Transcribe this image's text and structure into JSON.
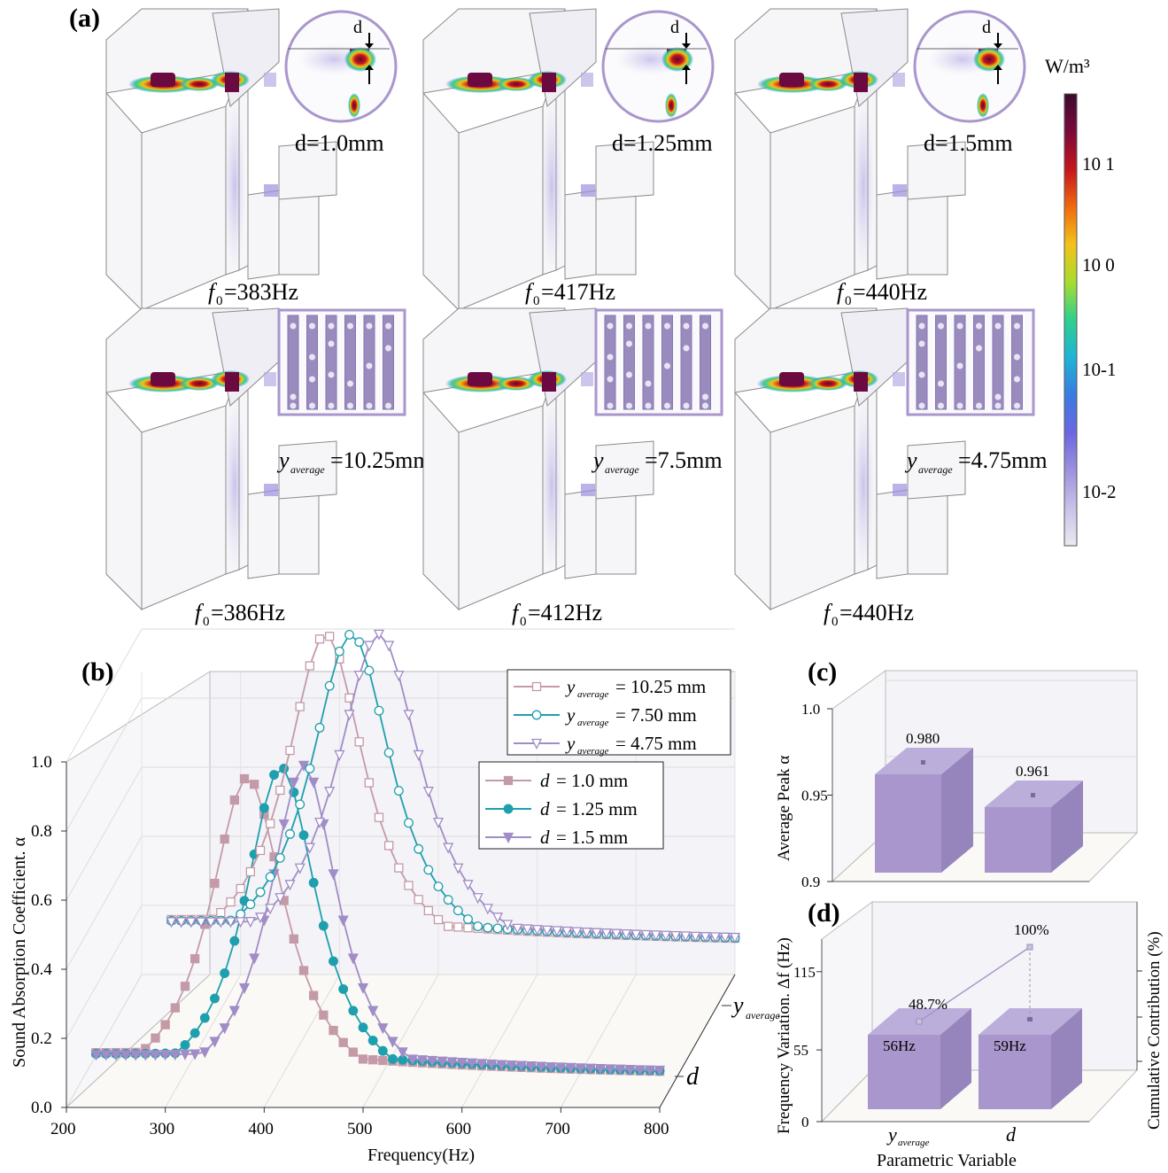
{
  "panel_a": {
    "letter": "(a)",
    "colorbar": {
      "unit": "W/m³",
      "ticks": [
        "10 1",
        "10 0",
        "10-1",
        "10-2"
      ],
      "colors": [
        "#3b0a2e",
        "#7a0a3a",
        "#c4151c",
        "#f06a10",
        "#f2c21a",
        "#a8dd2e",
        "#2fcf8e",
        "#1fb4d6",
        "#3a7be0",
        "#6b66e0",
        "#9c92de",
        "#c8c2e8",
        "#ebe9ef"
      ]
    },
    "zoom_d_symbol": "d",
    "cases": [
      {
        "param_label": "d=1.0mm",
        "freq_symbol": "f",
        "freq_sub": "0",
        "freq_value": "=383Hz"
      },
      {
        "param_label": "d=1.25mm",
        "freq_symbol": "f",
        "freq_sub": "0",
        "freq_value": "=417Hz"
      },
      {
        "param_label": "d=1.5mm",
        "freq_symbol": "f",
        "freq_sub": "0",
        "freq_value": "=440Hz"
      },
      {
        "param_sym": "y",
        "param_sub": "average",
        "param_value": "=10.25mm",
        "freq_symbol": "f",
        "freq_sub": "0",
        "freq_value": "=386Hz"
      },
      {
        "param_sym": "y",
        "param_sub": "average",
        "param_value": "=7.5mm",
        "freq_symbol": "f",
        "freq_sub": "0",
        "freq_value": "=412Hz"
      },
      {
        "param_sym": "y",
        "param_sub": "average",
        "param_value": "=4.75mm",
        "freq_symbol": "f",
        "freq_sub": "0",
        "freq_value": "=440Hz"
      }
    ]
  },
  "chart_data": [
    {
      "panel": "(b)",
      "type": "line",
      "xlabel": "Frequency(Hz)",
      "ylabel": "Sound Absorption Coefficient. α",
      "xlim": [
        200,
        800
      ],
      "ylim": [
        0.0,
        1.0
      ],
      "xticks": [
        "200",
        "300",
        "400",
        "500",
        "600",
        "700",
        "800"
      ],
      "yticks": [
        "0.0",
        "0.2",
        "0.4",
        "0.6",
        "0.8",
        "1.0"
      ],
      "depth_labels": [
        {
          "sym": "y",
          "sub": "average"
        },
        {
          "sym": "d",
          "sub": ""
        }
      ],
      "legend_back": [
        {
          "sym": "y",
          "sub": "average",
          "text": "= 10.25 mm"
        },
        {
          "sym": "y",
          "sub": "average",
          "text": "= 7.50  mm"
        },
        {
          "sym": "y",
          "sub": "average",
          "text": "= 4.75  mm"
        }
      ],
      "legend_front": [
        {
          "sym": "d",
          "text": "= 1.0    mm"
        },
        {
          "sym": "d",
          "text": "= 1.25 mm"
        },
        {
          "sym": "d",
          "text": "= 1.5    mm"
        }
      ],
      "series": [
        {
          "row": "front",
          "color": "#c49aa8",
          "marker": "square",
          "filled": true,
          "f0": 383,
          "peak": 0.955,
          "gamma": 48
        },
        {
          "row": "front",
          "color": "#1e9fad",
          "marker": "circle",
          "filled": true,
          "f0": 417,
          "peak": 0.985,
          "gamma": 46
        },
        {
          "row": "front",
          "color": "#a08cc6",
          "marker": "triangle",
          "filled": true,
          "f0": 440,
          "peak": 0.99,
          "gamma": 44
        },
        {
          "row": "back",
          "color": "#c49aa8",
          "marker": "square",
          "filled": false,
          "f0": 386,
          "peak": 0.985,
          "gamma": 50
        },
        {
          "row": "back",
          "color": "#1e9fad",
          "marker": "circle",
          "filled": false,
          "f0": 412,
          "peak": 0.985,
          "gamma": 52
        },
        {
          "row": "back",
          "color": "#a08cc6",
          "marker": "triangle",
          "filled": false,
          "f0": 440,
          "peak": 0.985,
          "gamma": 54
        }
      ]
    },
    {
      "panel": "(c)",
      "type": "bar",
      "ylabel": "Average Peak α",
      "ylim": [
        0.9,
        1.0
      ],
      "yticks": [
        "0.9",
        "0.95",
        "1.0"
      ],
      "values": [
        0.98,
        0.961
      ],
      "value_labels": [
        "0.980",
        "0.961"
      ],
      "bar_color": "#a996cc"
    },
    {
      "panel": "(d)",
      "type": "bar",
      "ylabel": "Frequency Variation. Δf (Hz)",
      "y2label": "Cumulative Contribution (%)",
      "xlabel": "Parametric Variable",
      "ylim": [
        0,
        140
      ],
      "yticks": [
        "0",
        "55",
        "115"
      ],
      "categories": [
        {
          "sym": "y",
          "sub": "average"
        },
        {
          "sym": "d",
          "sub": ""
        }
      ],
      "values": [
        56,
        59
      ],
      "value_labels": [
        "56Hz",
        "59Hz"
      ],
      "cumulative": [
        48.7,
        100
      ],
      "cumulative_labels": [
        "48.7%",
        "100%"
      ],
      "bar_color": "#a996cc"
    }
  ]
}
